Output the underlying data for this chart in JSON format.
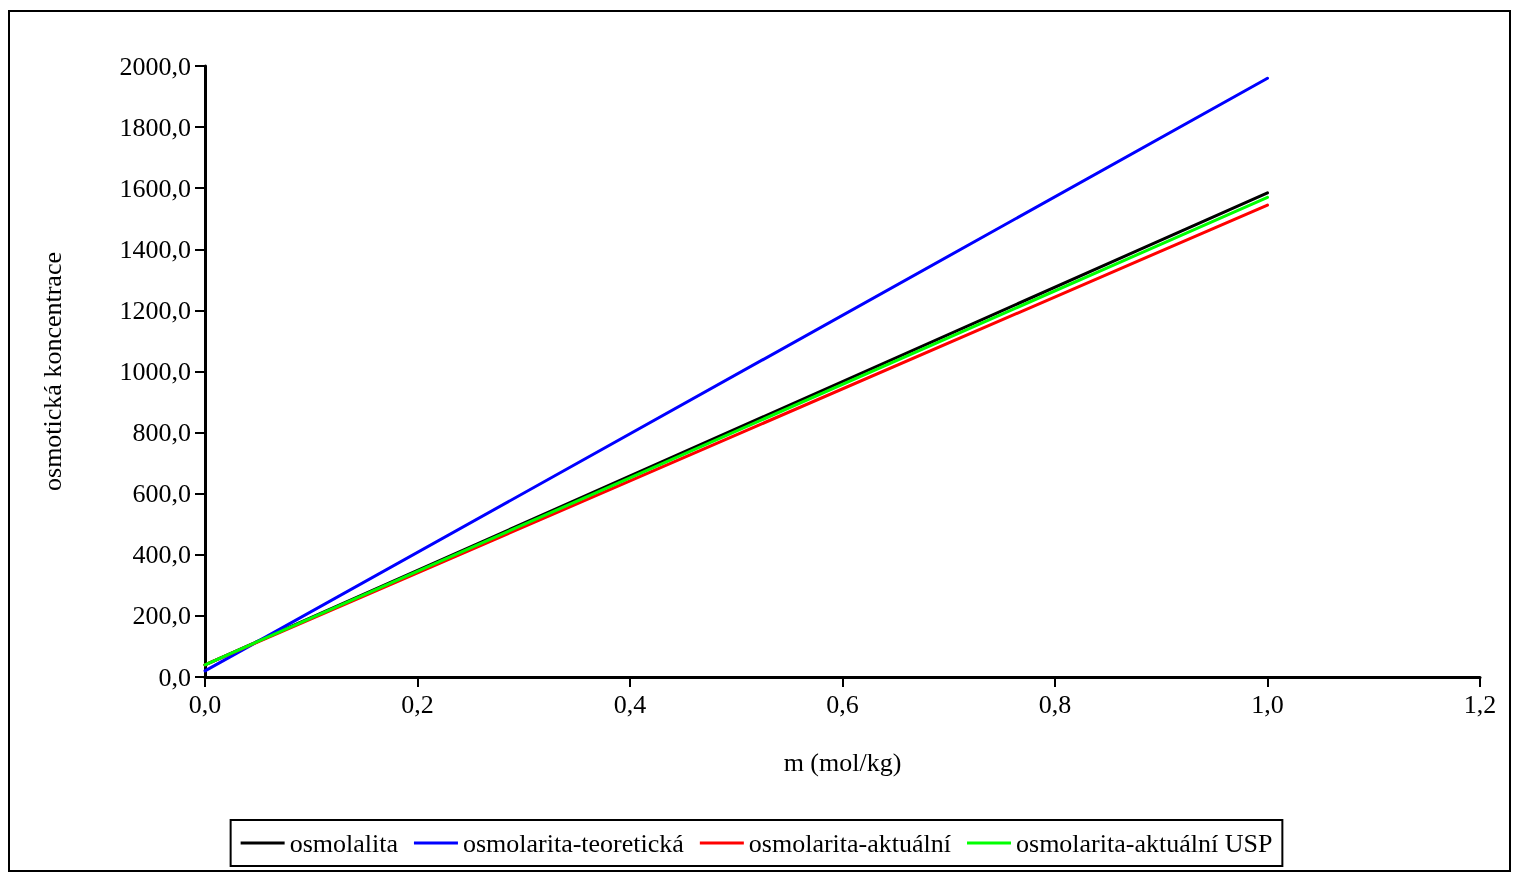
{
  "chart_data": {
    "type": "line",
    "xlabel": "m (mol/kg)",
    "ylabel": "osmotická koncentrace",
    "x": [
      0,
      1
    ],
    "series": [
      {
        "name": "osmolalita",
        "color": "#000000",
        "values": [
          40,
          1585
        ]
      },
      {
        "name": "osmolarita-teoretická",
        "color": "#0000ff",
        "values": [
          20,
          1960
        ]
      },
      {
        "name": "osmolarita-aktuální",
        "color": "#ff0000",
        "values": [
          40,
          1545
        ]
      },
      {
        "name": "osmolarita-aktuální USP",
        "color": "#00ff00",
        "values": [
          40,
          1570
        ]
      }
    ],
    "xlim": [
      0,
      1.2
    ],
    "xticks": [
      {
        "value": 0,
        "label": "0,0"
      },
      {
        "value": 0.2,
        "label": "0,2"
      },
      {
        "value": 0.4,
        "label": "0,4"
      },
      {
        "value": 0.6,
        "label": "0,6"
      },
      {
        "value": 0.8,
        "label": "0,8"
      },
      {
        "value": 1,
        "label": "1,0"
      },
      {
        "value": 1.2,
        "label": "1,2"
      }
    ],
    "ylim": [
      0,
      2000
    ],
    "yticks": [
      {
        "value": 0,
        "label": "0,0"
      },
      {
        "value": 200,
        "label": "200,0"
      },
      {
        "value": 400,
        "label": "400,0"
      },
      {
        "value": 600,
        "label": "600,0"
      },
      {
        "value": 800,
        "label": "800,0"
      },
      {
        "value": 1000,
        "label": "1000,0"
      },
      {
        "value": 1200,
        "label": "1200,0"
      },
      {
        "value": 1400,
        "label": "1400,0"
      },
      {
        "value": 1600,
        "label": "1600,0"
      },
      {
        "value": 1800,
        "label": "1800,0"
      },
      {
        "value": 2000,
        "label": "2000,0"
      }
    ],
    "grid": false,
    "legend": "bottom",
    "marker": "none",
    "line_style": "solid"
  }
}
